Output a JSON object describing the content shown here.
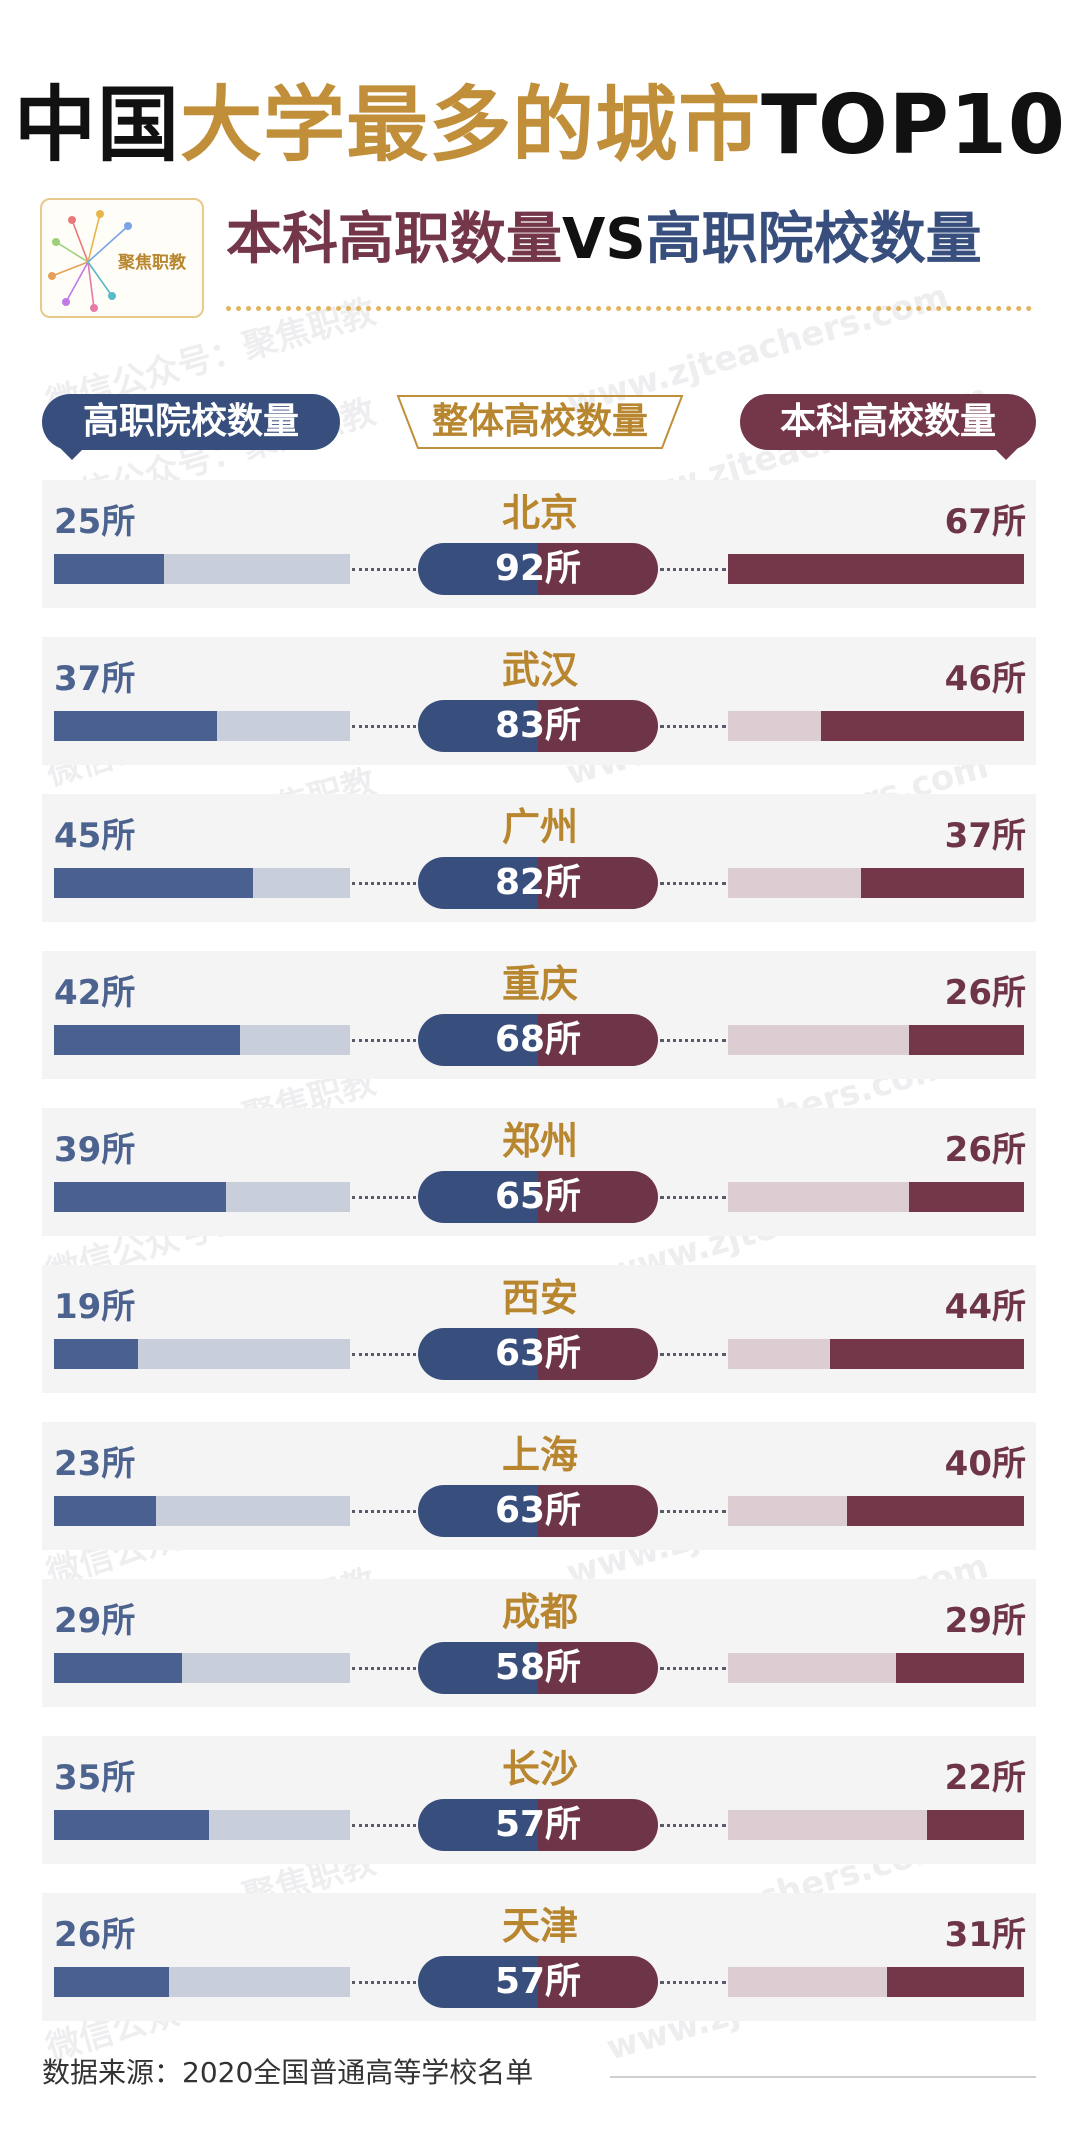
{
  "header": {
    "title_black_1": "中国",
    "title_gold": "大学最多的城市",
    "title_black_2": "TOP10",
    "subtitle_maroon": "本科高职数量",
    "subtitle_vs": "VS",
    "subtitle_navy": "高职院校数量",
    "logo_text": "聚焦职教"
  },
  "legend": {
    "left": "高职院校数量",
    "middle": "整体高校数量",
    "right": "本科高校数量"
  },
  "watermark": {
    "line1": "微信公众号：聚焦职教",
    "line2": "www.zjteachers.com"
  },
  "colors": {
    "navy": "#384f7e",
    "maroon": "#74374a",
    "gold": "#c18f3a"
  },
  "chart_data": {
    "type": "bar",
    "title": "中国大学最多的城市TOP10",
    "subtitle": "本科高职数量VS高职院校数量",
    "unit": "所",
    "bar_max": 67,
    "series": [
      {
        "name": "高职院校数量",
        "values": [
          25,
          37,
          45,
          42,
          39,
          19,
          23,
          29,
          35,
          26
        ]
      },
      {
        "name": "整体高校数量",
        "values": [
          92,
          83,
          82,
          68,
          65,
          63,
          63,
          58,
          57,
          57
        ]
      },
      {
        "name": "本科高校数量",
        "values": [
          67,
          46,
          37,
          26,
          26,
          44,
          40,
          29,
          22,
          31
        ]
      }
    ],
    "rows": [
      {
        "city": "北京",
        "vocational": "25所",
        "total": "92所",
        "undergrad": "67所"
      },
      {
        "city": "武汉",
        "vocational": "37所",
        "total": "83所",
        "undergrad": "46所"
      },
      {
        "city": "广州",
        "vocational": "45所",
        "total": "82所",
        "undergrad": "37所"
      },
      {
        "city": "重庆",
        "vocational": "42所",
        "total": "68所",
        "undergrad": "26所"
      },
      {
        "city": "郑州",
        "vocational": "39所",
        "total": "65所",
        "undergrad": "26所"
      },
      {
        "city": "西安",
        "vocational": "19所",
        "total": "63所",
        "undergrad": "44所"
      },
      {
        "city": "上海",
        "vocational": "23所",
        "total": "63所",
        "undergrad": "40所"
      },
      {
        "city": "成都",
        "vocational": "29所",
        "total": "58所",
        "undergrad": "29所"
      },
      {
        "city": "长沙",
        "vocational": "35所",
        "total": "57所",
        "undergrad": "22所"
      },
      {
        "city": "天津",
        "vocational": "26所",
        "total": "57所",
        "undergrad": "31所"
      }
    ]
  },
  "footer": {
    "source": "数据来源：2020全国普通高等学校名单"
  }
}
